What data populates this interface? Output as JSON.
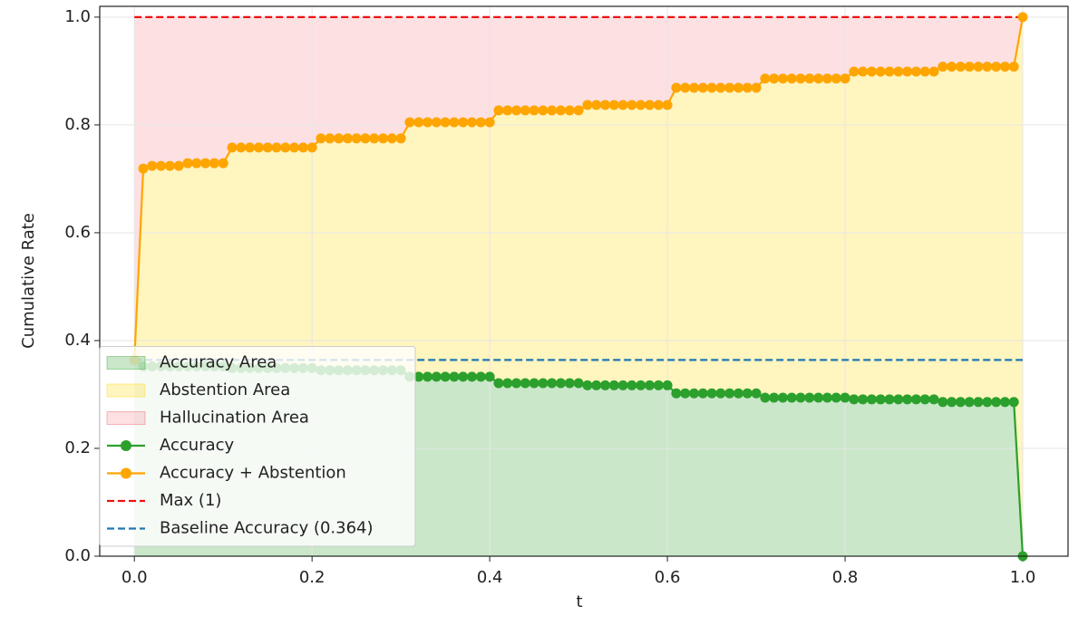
{
  "chart_data": {
    "type": "line",
    "xlabel": "t",
    "ylabel": "Cumulative Rate",
    "x": [
      0,
      0.01,
      0.02,
      0.03,
      0.04,
      0.05,
      0.06,
      0.07,
      0.08,
      0.09,
      0.1,
      0.11,
      0.12,
      0.13,
      0.14,
      0.15,
      0.16,
      0.17,
      0.18,
      0.19,
      0.2,
      0.21,
      0.22,
      0.23,
      0.24,
      0.25,
      0.26,
      0.27,
      0.28,
      0.29,
      0.3,
      0.31,
      0.32,
      0.33,
      0.34,
      0.35,
      0.36,
      0.37,
      0.38,
      0.39,
      0.4,
      0.41,
      0.42,
      0.43,
      0.44,
      0.45,
      0.46,
      0.47,
      0.48,
      0.49,
      0.5,
      0.51,
      0.52,
      0.53,
      0.54,
      0.55,
      0.56,
      0.57,
      0.58,
      0.59,
      0.6,
      0.61,
      0.62,
      0.63,
      0.64,
      0.65,
      0.66,
      0.67,
      0.68,
      0.69,
      0.7,
      0.71,
      0.72,
      0.73,
      0.74,
      0.75,
      0.76,
      0.77,
      0.78,
      0.79,
      0.8,
      0.81,
      0.82,
      0.83,
      0.84,
      0.85,
      0.86,
      0.87,
      0.88,
      0.89,
      0.9,
      0.91,
      0.92,
      0.93,
      0.94,
      0.95,
      0.96,
      0.97,
      0.98,
      0.99,
      1
    ],
    "series": [
      {
        "name": "Accuracy",
        "color": "#2ca02c",
        "values": [
          0.364,
          0.352,
          0.352,
          0.352,
          0.352,
          0.352,
          0.352,
          0.352,
          0.352,
          0.352,
          0.352,
          0.349,
          0.349,
          0.349,
          0.349,
          0.349,
          0.349,
          0.349,
          0.349,
          0.349,
          0.349,
          0.345,
          0.345,
          0.345,
          0.345,
          0.345,
          0.345,
          0.345,
          0.345,
          0.345,
          0.345,
          0.333,
          0.333,
          0.333,
          0.333,
          0.333,
          0.333,
          0.333,
          0.333,
          0.333,
          0.333,
          0.321,
          0.321,
          0.321,
          0.321,
          0.321,
          0.321,
          0.321,
          0.321,
          0.321,
          0.321,
          0.317,
          0.317,
          0.317,
          0.317,
          0.317,
          0.317,
          0.317,
          0.317,
          0.317,
          0.317,
          0.302,
          0.302,
          0.302,
          0.302,
          0.302,
          0.302,
          0.302,
          0.302,
          0.302,
          0.302,
          0.294,
          0.294,
          0.294,
          0.294,
          0.294,
          0.294,
          0.294,
          0.294,
          0.294,
          0.294,
          0.291,
          0.291,
          0.291,
          0.291,
          0.291,
          0.291,
          0.291,
          0.291,
          0.291,
          0.291,
          0.286,
          0.286,
          0.286,
          0.286,
          0.286,
          0.286,
          0.286,
          0.286,
          0.286,
          0
        ]
      },
      {
        "name": "Accuracy + Abstention",
        "color": "#ffa500",
        "values": [
          0.364,
          0.719,
          0.724,
          0.724,
          0.724,
          0.724,
          0.729,
          0.729,
          0.729,
          0.729,
          0.729,
          0.758,
          0.758,
          0.758,
          0.758,
          0.758,
          0.758,
          0.758,
          0.758,
          0.758,
          0.758,
          0.775,
          0.775,
          0.775,
          0.775,
          0.775,
          0.775,
          0.775,
          0.775,
          0.775,
          0.775,
          0.805,
          0.805,
          0.805,
          0.805,
          0.805,
          0.805,
          0.805,
          0.805,
          0.805,
          0.805,
          0.827,
          0.827,
          0.827,
          0.827,
          0.827,
          0.827,
          0.827,
          0.827,
          0.827,
          0.827,
          0.837,
          0.837,
          0.837,
          0.837,
          0.837,
          0.837,
          0.837,
          0.837,
          0.837,
          0.837,
          0.869,
          0.869,
          0.869,
          0.869,
          0.869,
          0.869,
          0.869,
          0.869,
          0.869,
          0.869,
          0.886,
          0.886,
          0.886,
          0.886,
          0.886,
          0.886,
          0.886,
          0.886,
          0.886,
          0.886,
          0.899,
          0.899,
          0.899,
          0.899,
          0.899,
          0.899,
          0.899,
          0.899,
          0.899,
          0.899,
          0.908,
          0.908,
          0.908,
          0.908,
          0.908,
          0.908,
          0.908,
          0.908,
          0.908,
          1
        ]
      }
    ],
    "areas": [
      {
        "name": "Accuracy Area",
        "color": "#2ca02c"
      },
      {
        "name": "Abstention Area",
        "color": "#ffd700"
      },
      {
        "name": "Hallucination Area",
        "color": "#ef5360"
      }
    ],
    "hlines": [
      {
        "name": "Max (1)",
        "value": 1,
        "color": "#ee1111"
      },
      {
        "name": "Baseline Accuracy (0.364)",
        "value": 0.364,
        "color": "#1f77b4"
      }
    ],
    "xlim": [
      -0.039,
      1.051
    ],
    "ylim": [
      0,
      1.02
    ],
    "xticks": [
      {
        "value": 0,
        "label": "0.0"
      },
      0.2,
      0.4,
      0.6,
      0.8,
      {
        "value": 1,
        "label": "1.0"
      }
    ],
    "yticks": [
      {
        "value": 0,
        "label": "0.0"
      },
      0.2,
      0.4,
      0.6,
      0.8,
      {
        "value": 1,
        "label": "1.0"
      }
    ],
    "grid": true,
    "legend": "lower left"
  }
}
